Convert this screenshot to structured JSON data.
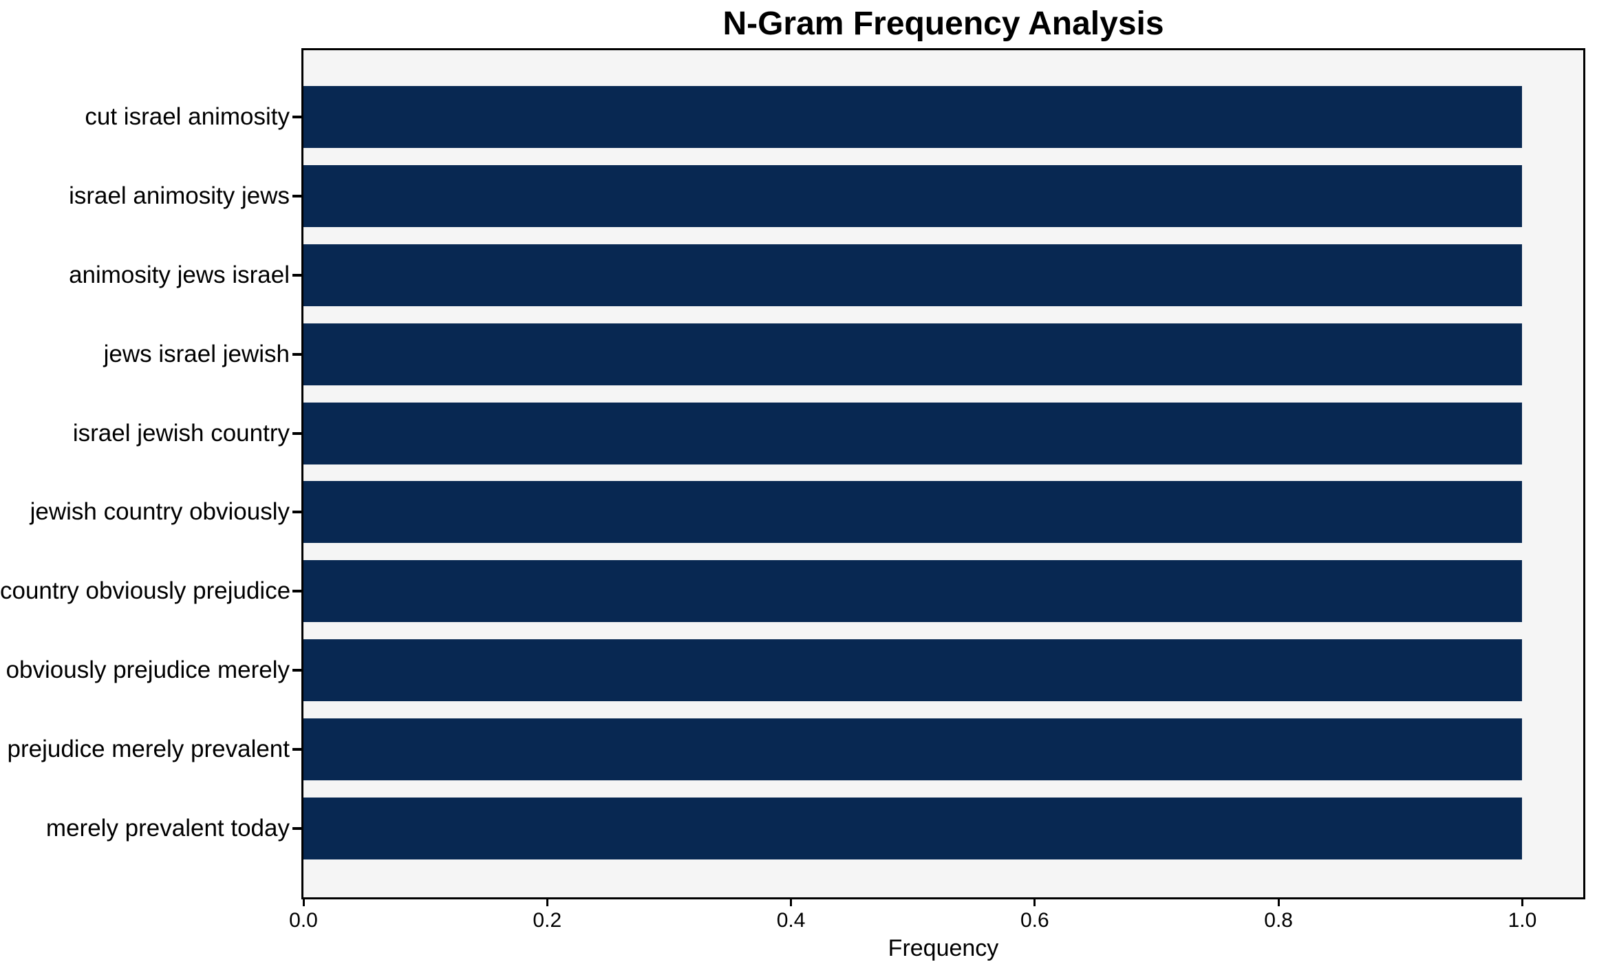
{
  "chart_data": {
    "type": "bar",
    "orientation": "horizontal",
    "title": "N-Gram Frequency Analysis",
    "xlabel": "Frequency",
    "ylabel": "",
    "categories": [
      "cut israel animosity",
      "israel animosity jews",
      "animosity jews israel",
      "jews israel jewish",
      "israel jewish country",
      "jewish country obviously",
      "country obviously prejudice",
      "obviously prejudice merely",
      "prejudice merely prevalent",
      "merely prevalent today"
    ],
    "values": [
      1.0,
      1.0,
      1.0,
      1.0,
      1.0,
      1.0,
      1.0,
      1.0,
      1.0,
      1.0
    ],
    "xlim": [
      0,
      1.05
    ],
    "xticks": [
      0.0,
      0.2,
      0.4,
      0.6,
      0.8,
      1.0
    ],
    "xtick_labels": [
      "0.0",
      "0.2",
      "0.4",
      "0.6",
      "0.8",
      "1.0"
    ],
    "grid": false,
    "legend": null,
    "colors": {
      "bar": "#082852",
      "plot_background": "#f5f5f5",
      "figure_background": "#ffffff",
      "spine": "#000000",
      "text": "#000000"
    }
  }
}
